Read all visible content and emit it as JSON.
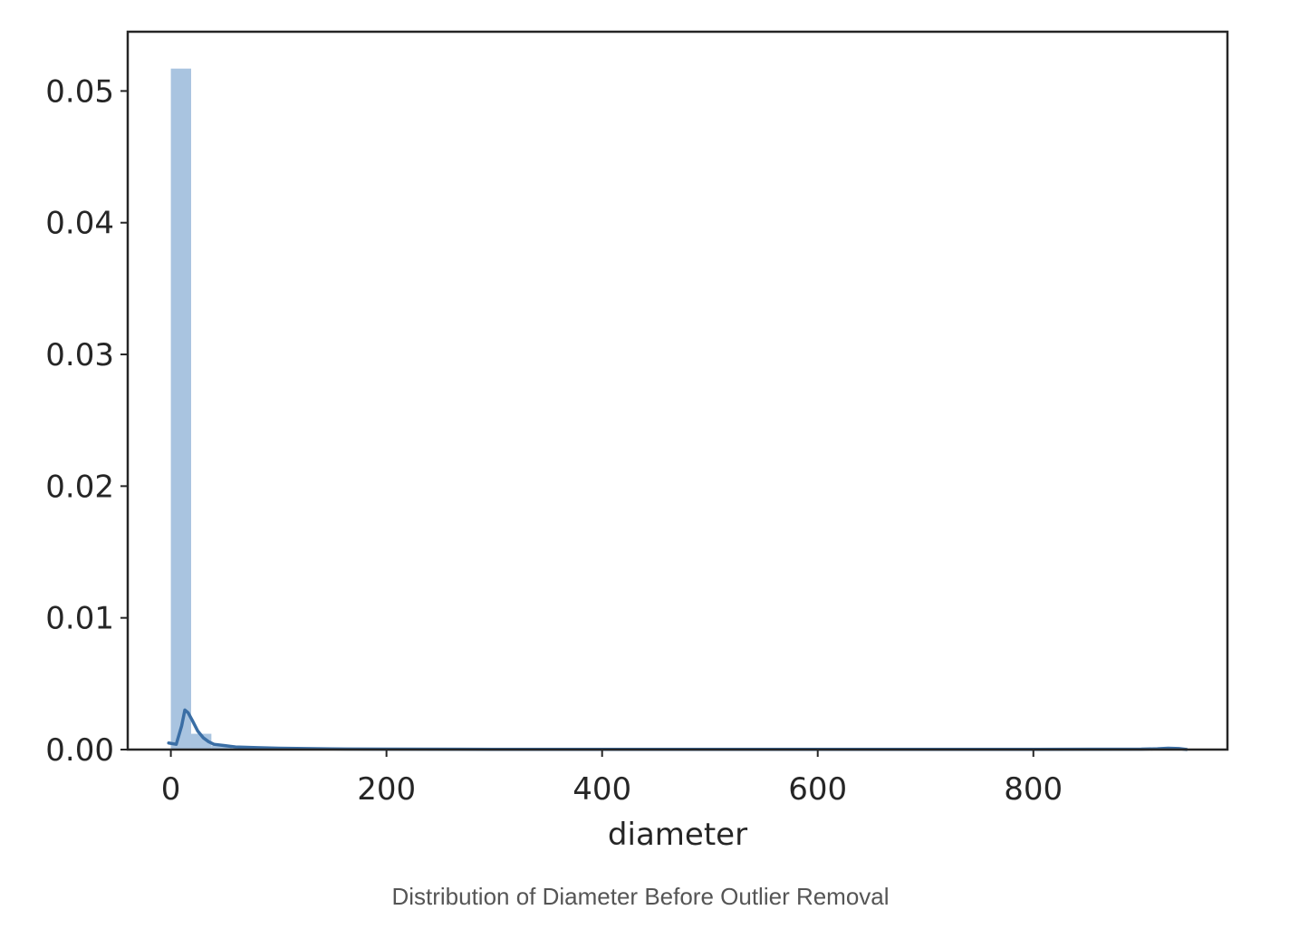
{
  "chart_data": {
    "type": "histogram",
    "xlabel": "diameter",
    "ylabel": "",
    "xlim": [
      -40,
      980
    ],
    "ylim": [
      0,
      0.0545
    ],
    "xticks": [
      0,
      200,
      400,
      600,
      800
    ],
    "xtick_labels": [
      "0",
      "200",
      "400",
      "600",
      "800"
    ],
    "yticks": [
      0,
      0.01,
      0.02,
      0.03,
      0.04,
      0.05
    ],
    "ytick_labels": [
      "0.00",
      "0.01",
      "0.02",
      "0.03",
      "0.04",
      "0.05"
    ],
    "colors": {
      "bar": "#a9c4e0",
      "kde": "#3a6ea5",
      "axes": "#262626"
    },
    "histogram": {
      "bin_width": 18.8,
      "bins": [
        {
          "x0": 0.0,
          "x1": 18.8,
          "density": 0.0517
        },
        {
          "x0": 18.8,
          "x1": 37.6,
          "density": 0.0012
        },
        {
          "x0": 37.6,
          "x1": 56.4,
          "density": 0.0003
        },
        {
          "x0": 912.0,
          "x1": 930.8,
          "density": 6e-05
        }
      ]
    },
    "kde": {
      "x": [
        -2,
        5,
        10,
        13,
        16,
        20,
        25,
        30,
        35,
        40,
        50,
        60,
        80,
        100,
        150,
        200,
        300,
        400,
        500,
        600,
        700,
        800,
        900,
        915,
        925,
        935,
        942
      ],
      "y": [
        0.0005,
        0.0004,
        0.0018,
        0.003,
        0.0028,
        0.0022,
        0.0014,
        0.0009,
        0.0006,
        0.0004,
        0.0003,
        0.0002,
        0.00015,
        0.0001,
        5e-05,
        3e-05,
        2e-05,
        2e-05,
        2e-05,
        2e-05,
        2e-05,
        2e-05,
        3e-05,
        6e-05,
        0.0001,
        8e-05,
        1e-05
      ]
    }
  },
  "caption": "Distribution of Diameter Before Outlier Removal"
}
